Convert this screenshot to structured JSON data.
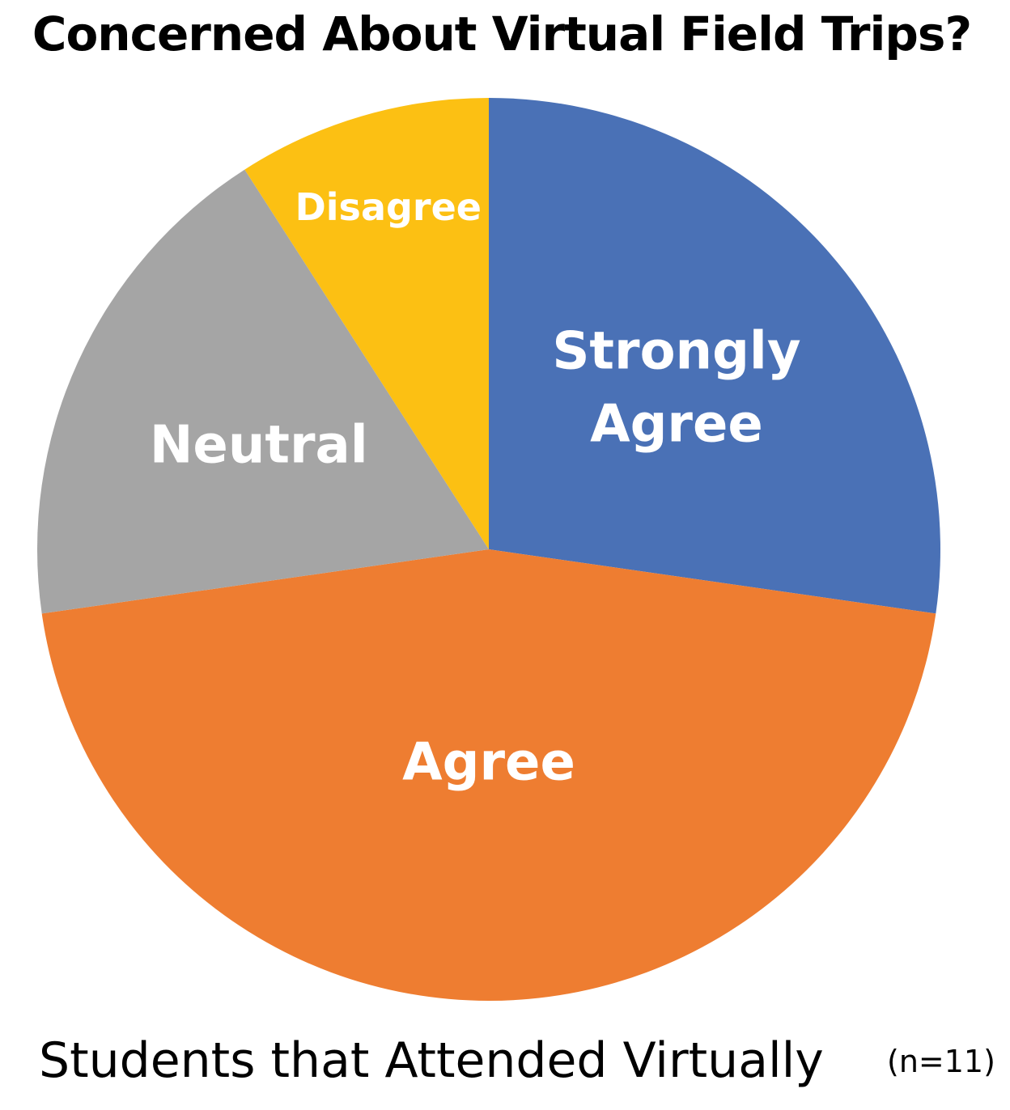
{
  "chart_data": {
    "type": "pie",
    "title": "Concerned About Virtual Field Trips?",
    "subtitle": "Students that Attended Virtually",
    "note": "(n=11)",
    "start": "top",
    "direction": "clockwise",
    "slices": [
      {
        "label": "Strongly Agree",
        "lines": [
          "Strongly",
          "Agree"
        ],
        "value": 3,
        "color": "#4A71B6"
      },
      {
        "label": "Agree",
        "lines": [
          "Agree"
        ],
        "value": 5,
        "color": "#EE7D31"
      },
      {
        "label": "Neutral",
        "lines": [
          "Neutral"
        ],
        "value": 2,
        "color": "#A5A5A5"
      },
      {
        "label": "Disagree",
        "lines": [
          "Disagree"
        ],
        "value": 1,
        "color": "#FCC013"
      }
    ]
  }
}
